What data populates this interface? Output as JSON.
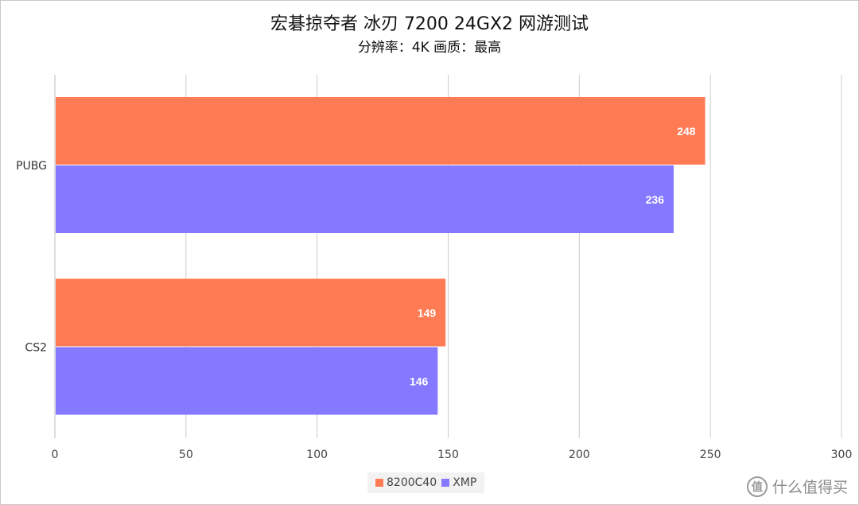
{
  "chart_data": {
    "type": "bar",
    "orientation": "horizontal",
    "title": "宏碁掠夺者 冰刃 7200 24GX2 网游测试",
    "subtitle": "分辨率：4K 画质：最高",
    "categories": [
      "PUBG",
      "CS2"
    ],
    "series": [
      {
        "name": "8200C40",
        "color": "#ff7b54",
        "values": [
          248,
          149
        ]
      },
      {
        "name": "XMP",
        "color": "#8579ff",
        "values": [
          236,
          146
        ]
      }
    ],
    "xlim": [
      0,
      300
    ],
    "xticks": [
      "0",
      "50",
      "100",
      "150",
      "200",
      "250",
      "300"
    ],
    "grid": true,
    "legend_position": "bottom"
  },
  "watermark": {
    "icon": "值",
    "text": "什么值得买"
  }
}
